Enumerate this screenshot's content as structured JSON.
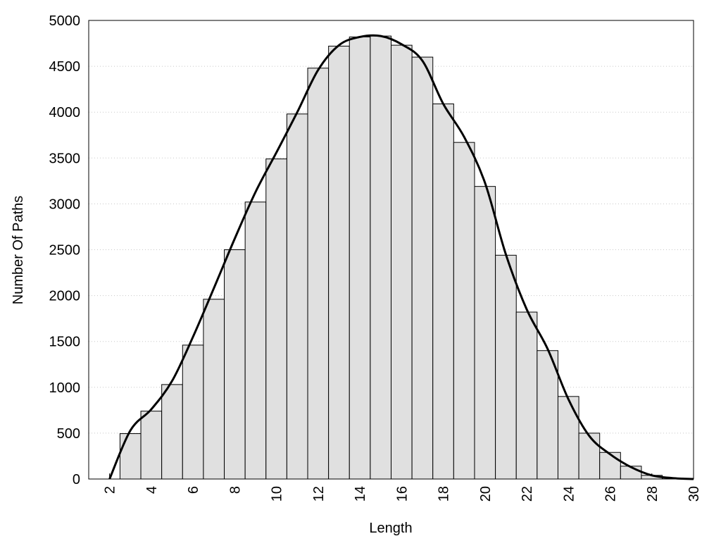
{
  "chart_data": [
    {
      "type": "histogram",
      "xlabel": "Length",
      "ylabel": "Number Of Paths",
      "bins": [
        2.5,
        3.5,
        4.5,
        5.5,
        6.5,
        7.5,
        8.5,
        9.5,
        10.5,
        11.5,
        12.5,
        13.5,
        14.5,
        15.5,
        16.5,
        17.5,
        18.5,
        19.5,
        20.5,
        21.5,
        22.5,
        23.5,
        24.5,
        25.5,
        26.5,
        27.5,
        28.5,
        29.5
      ],
      "values": [
        495,
        740,
        1030,
        1460,
        1960,
        2500,
        3020,
        3490,
        3980,
        4480,
        4720,
        4820,
        4830,
        4730,
        4600,
        4090,
        3670,
        3190,
        2440,
        1820,
        1400,
        900,
        500,
        290,
        140,
        40,
        10
      ],
      "color": "#e0e0e0",
      "xlim": [
        1,
        30
      ],
      "ylim": [
        0,
        5000
      ],
      "xticks": [
        2,
        4,
        6,
        8,
        10,
        12,
        14,
        16,
        18,
        20,
        22,
        24,
        26,
        28,
        30
      ],
      "yticks": [
        0,
        500,
        1000,
        1500,
        2000,
        2500,
        3000,
        3500,
        4000,
        4500,
        5000
      ],
      "grid": true
    },
    {
      "type": "line",
      "color": "#000000",
      "x": [
        2,
        3,
        4,
        5,
        6,
        7,
        8,
        9,
        10,
        11,
        12,
        13,
        14,
        15,
        16,
        17,
        18,
        19,
        20,
        21,
        22,
        23,
        24,
        25,
        26,
        27,
        28,
        29,
        30
      ],
      "values": [
        0,
        530,
        760,
        1070,
        1550,
        2080,
        2620,
        3130,
        3560,
        4000,
        4460,
        4730,
        4820,
        4830,
        4740,
        4560,
        4090,
        3730,
        3230,
        2450,
        1850,
        1420,
        870,
        470,
        270,
        130,
        40,
        10,
        0
      ]
    }
  ]
}
